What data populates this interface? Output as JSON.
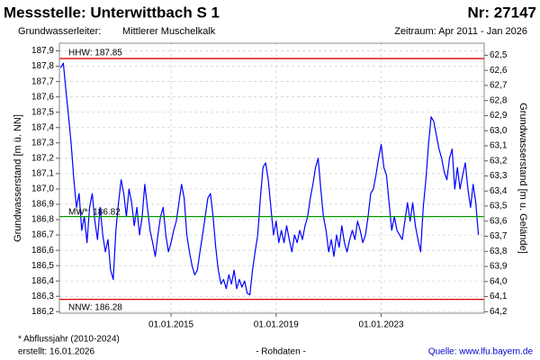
{
  "chart_data": {
    "type": "line",
    "title": "Messstelle: Unterwittbach S 1",
    "number": "Nr: 27147",
    "aquifer_label": "Grundwasserleiter:",
    "aquifer": "Mittlerer Muschelkalk",
    "period": "Zeitraum: Apr 2011 - Jan 2026",
    "y_label": "Grundwasserstand [m ü. NN]",
    "y2_label": "Grundwasserstand [m u. Gelände]",
    "footnote": "* Abflussjahr (2010-2024)",
    "created": "erstellt:  16.01.2026",
    "data_kind": "- Rohdaten -",
    "source": "Quelle: www.lfu.bayern.de",
    "color": "#0000ff",
    "grid": true,
    "xlim": [
      2010.75,
      2026.92
    ],
    "xticks": [
      {
        "value": 2015,
        "label": "01.01.2015"
      },
      {
        "value": 2019,
        "label": "01.01.2019"
      },
      {
        "value": 2023,
        "label": "01.01.2023"
      }
    ],
    "ylim": [
      186.19,
      187.95
    ],
    "yticks": [
      {
        "value": 187.9,
        "label": "187,9"
      },
      {
        "value": 187.8,
        "label": "187,8"
      },
      {
        "value": 187.7,
        "label": "187,7"
      },
      {
        "value": 187.6,
        "label": "187,6"
      },
      {
        "value": 187.5,
        "label": "187,5"
      },
      {
        "value": 187.4,
        "label": "187,4"
      },
      {
        "value": 187.3,
        "label": "187,3"
      },
      {
        "value": 187.2,
        "label": "187,2"
      },
      {
        "value": 187.1,
        "label": "187,1"
      },
      {
        "value": 187.0,
        "label": "187,0"
      },
      {
        "value": 186.9,
        "label": "186,9"
      },
      {
        "value": 186.8,
        "label": "186,8"
      },
      {
        "value": 186.7,
        "label": "186,7"
      },
      {
        "value": 186.6,
        "label": "186,6"
      },
      {
        "value": 186.5,
        "label": "186,5"
      },
      {
        "value": 186.4,
        "label": "186,4"
      },
      {
        "value": 186.3,
        "label": "186,3"
      },
      {
        "value": 186.2,
        "label": "186,2"
      }
    ],
    "y2lim": [
      64.21,
      62.42
    ],
    "y2ticks": [
      {
        "value": 62.5,
        "label": "62,5"
      },
      {
        "value": 62.6,
        "label": "62,6"
      },
      {
        "value": 62.7,
        "label": "62,7"
      },
      {
        "value": 62.8,
        "label": "62,8"
      },
      {
        "value": 62.9,
        "label": "62,9"
      },
      {
        "value": 63.0,
        "label": "63,0"
      },
      {
        "value": 63.1,
        "label": "63,1"
      },
      {
        "value": 63.2,
        "label": "63,2"
      },
      {
        "value": 63.3,
        "label": "63,3"
      },
      {
        "value": 63.4,
        "label": "63,4"
      },
      {
        "value": 63.5,
        "label": "63,5"
      },
      {
        "value": 63.6,
        "label": "63,6"
      },
      {
        "value": 63.7,
        "label": "63,7"
      },
      {
        "value": 63.8,
        "label": "63,8"
      },
      {
        "value": 63.9,
        "label": "63,9"
      },
      {
        "value": 64.0,
        "label": "64,0"
      },
      {
        "value": 64.1,
        "label": "64,1"
      },
      {
        "value": 64.2,
        "label": "64,2"
      }
    ],
    "reference_lines": [
      {
        "label": "HHW: 187.85",
        "value": 187.85,
        "color": "#e00000"
      },
      {
        "label": "MW*: 186.82",
        "value": 186.82,
        "color": "#009900"
      },
      {
        "label": "NNW: 186.28",
        "value": 186.28,
        "color": "#e00000"
      }
    ],
    "x": [
      2010.8,
      2010.9,
      2011,
      2011.1,
      2011.2,
      2011.3,
      2011.4,
      2011.5,
      2011.6,
      2011.7,
      2011.8,
      2011.9,
      2012,
      2012.1,
      2012.2,
      2012.3,
      2012.4,
      2012.5,
      2012.6,
      2012.7,
      2012.8,
      2012.9,
      2013,
      2013.1,
      2013.2,
      2013.3,
      2013.4,
      2013.5,
      2013.6,
      2013.7,
      2013.8,
      2013.9,
      2014,
      2014.1,
      2014.2,
      2014.3,
      2014.4,
      2014.5,
      2014.6,
      2014.7,
      2014.8,
      2014.9,
      2015,
      2015.1,
      2015.2,
      2015.3,
      2015.4,
      2015.5,
      2015.6,
      2015.7,
      2015.8,
      2015.9,
      2016,
      2016.1,
      2016.2,
      2016.3,
      2016.4,
      2016.5,
      2016.6,
      2016.7,
      2016.8,
      2016.9,
      2017,
      2017.1,
      2017.2,
      2017.3,
      2017.4,
      2017.5,
      2017.6,
      2017.7,
      2017.8,
      2017.9,
      2018,
      2018.1,
      2018.2,
      2018.3,
      2018.4,
      2018.5,
      2018.6,
      2018.7,
      2018.8,
      2018.9,
      2019,
      2019.1,
      2019.2,
      2019.3,
      2019.4,
      2019.5,
      2019.6,
      2019.7,
      2019.8,
      2019.9,
      2020,
      2020.1,
      2020.2,
      2020.3,
      2020.4,
      2020.5,
      2020.6,
      2020.7,
      2020.8,
      2020.9,
      2021,
      2021.1,
      2021.2,
      2021.3,
      2021.4,
      2021.5,
      2021.6,
      2021.7,
      2021.8,
      2021.9,
      2022,
      2022.1,
      2022.2,
      2022.3,
      2022.4,
      2022.5,
      2022.6,
      2022.7,
      2022.8,
      2022.9,
      2023,
      2023.1,
      2023.2,
      2023.3,
      2023.4,
      2023.5,
      2023.6,
      2023.7,
      2023.8,
      2023.9,
      2024,
      2024.1,
      2024.2,
      2024.3,
      2024.4,
      2024.5,
      2024.6,
      2024.7,
      2024.8,
      2024.9,
      2025,
      2025.1,
      2025.2,
      2025.3,
      2025.4,
      2025.5,
      2025.6,
      2025.7,
      2025.8,
      2025.9,
      2026,
      2026.1,
      2026.2,
      2026.3,
      2026.4,
      2026.5,
      2026.6,
      2026.7
    ],
    "values": [
      187.79,
      187.82,
      187.64,
      187.47,
      187.29,
      187.06,
      186.88,
      186.97,
      186.73,
      186.82,
      186.65,
      186.88,
      186.97,
      186.79,
      186.67,
      186.88,
      186.7,
      186.59,
      186.67,
      186.47,
      186.41,
      186.73,
      186.91,
      187.06,
      186.97,
      186.82,
      187.0,
      186.91,
      186.76,
      186.88,
      186.7,
      186.82,
      187.03,
      186.88,
      186.73,
      186.65,
      186.56,
      186.7,
      186.82,
      186.88,
      186.7,
      186.59,
      186.65,
      186.73,
      186.79,
      186.91,
      187.03,
      186.94,
      186.7,
      186.59,
      186.5,
      186.44,
      186.47,
      186.59,
      186.7,
      186.82,
      186.94,
      186.97,
      186.82,
      186.62,
      186.47,
      186.38,
      186.41,
      186.35,
      186.44,
      186.38,
      186.47,
      186.35,
      186.41,
      186.36,
      186.4,
      186.32,
      186.31,
      186.47,
      186.59,
      186.7,
      186.94,
      187.14,
      187.17,
      187.06,
      186.88,
      186.7,
      186.79,
      186.65,
      186.73,
      186.65,
      186.76,
      186.67,
      186.59,
      186.7,
      186.65,
      186.73,
      186.67,
      186.76,
      186.82,
      186.94,
      187.03,
      187.14,
      187.2,
      187.0,
      186.82,
      186.73,
      186.59,
      186.67,
      186.56,
      186.7,
      186.62,
      186.76,
      186.65,
      186.59,
      186.67,
      186.73,
      186.67,
      186.79,
      186.73,
      186.65,
      186.7,
      186.82,
      186.97,
      187.0,
      187.09,
      187.2,
      187.29,
      187.14,
      187.09,
      186.91,
      186.73,
      186.82,
      186.73,
      186.7,
      186.67,
      186.79,
      186.91,
      186.79,
      186.91,
      186.76,
      186.67,
      186.59,
      186.88,
      187.06,
      187.29,
      187.47,
      187.44,
      187.35,
      187.26,
      187.2,
      187.11,
      187.06,
      187.2,
      187.26,
      187.0,
      187.14,
      187.0,
      187.09,
      187.17,
      187.0,
      186.88,
      187.03,
      186.91,
      186.7
    ]
  }
}
